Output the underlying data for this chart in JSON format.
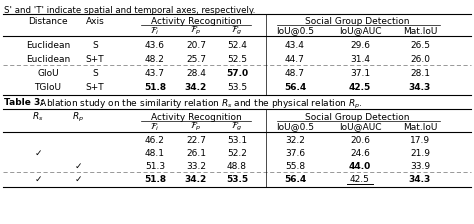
{
  "caption_top": "S' and 'T' indicate spatial and temporal axes, respectively.",
  "table2_caption_bold": "Table 3:",
  "table2_caption_rest": " Ablation study on the similarity relation $R_s$ and the physical relation $R_p$.",
  "t1_rows": [
    [
      "Euclidean",
      "S",
      "43.6",
      "20.7",
      "52.4",
      "43.4",
      "29.6",
      "26.5",
      false,
      []
    ],
    [
      "Euclidean",
      "S+T",
      "48.2",
      "25.7",
      "52.5",
      "44.7",
      "31.4",
      "26.0",
      false,
      []
    ],
    [
      "GIoU",
      "S",
      "43.7",
      "28.4",
      "57.0",
      "48.7",
      "37.1",
      "28.1",
      true,
      [
        4
      ]
    ],
    [
      "TGIoU",
      "S+T",
      "51.8",
      "34.2",
      "53.5",
      "56.4",
      "42.5",
      "34.3",
      false,
      [
        2,
        3,
        5,
        6,
        7
      ]
    ]
  ],
  "t2_rows": [
    [
      "",
      "",
      "46.2",
      "22.7",
      "53.1",
      "32.2",
      "20.6",
      "17.9",
      false,
      [],
      []
    ],
    [
      "v",
      "",
      "48.1",
      "26.1",
      "52.2",
      "37.6",
      "24.6",
      "21.9",
      false,
      [],
      []
    ],
    [
      "",
      "v",
      "51.3",
      "33.2",
      "48.8",
      "55.8",
      "44.0",
      "33.9",
      false,
      [
        6
      ],
      []
    ],
    [
      "v",
      "v",
      "51.8",
      "34.2",
      "53.5",
      "56.4",
      "42.5",
      "34.3",
      true,
      [
        2,
        3,
        4,
        5,
        7
      ],
      [
        6
      ]
    ]
  ]
}
